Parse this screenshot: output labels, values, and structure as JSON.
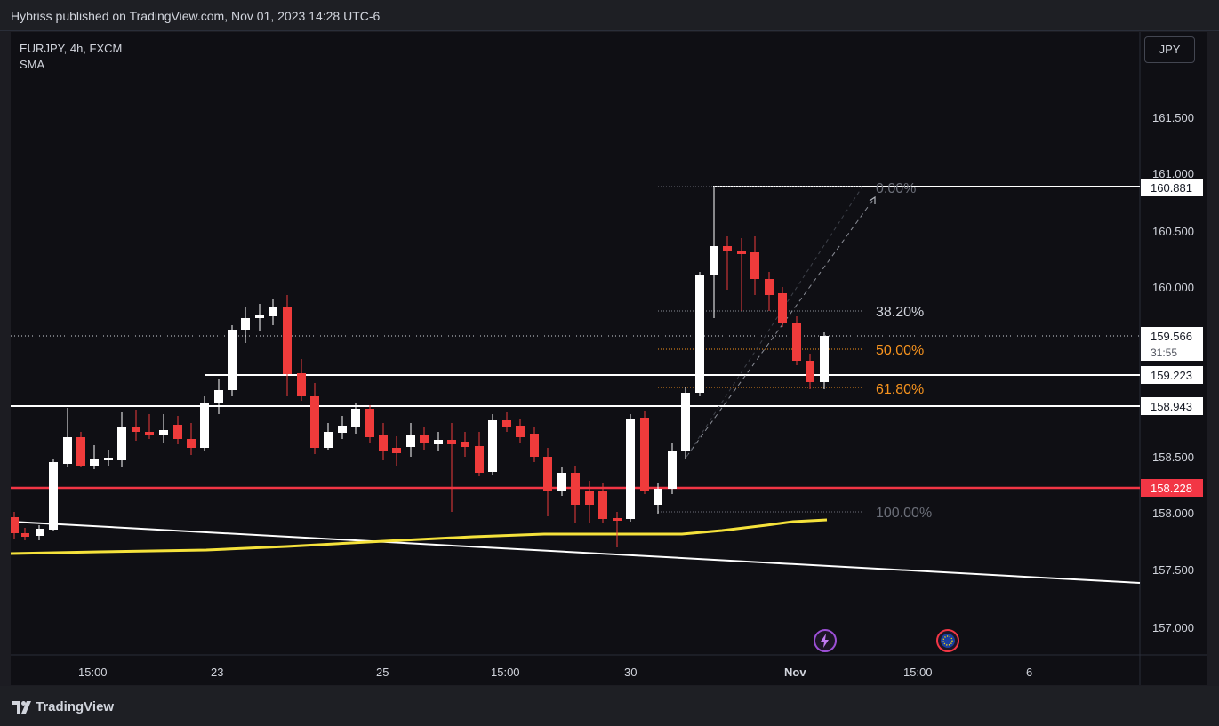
{
  "header": {
    "publish_info": "Hybriss published on TradingView.com, Nov 01, 2023 14:28 UTC-6"
  },
  "legend": {
    "symbol_line": "EURJPY, 4h, FXCM",
    "indicator": "SMA"
  },
  "currency_button": "JPY",
  "price_axis": {
    "ticks": [
      "161.500",
      "161.000",
      "160.500",
      "160.000",
      "158.500",
      "158.000",
      "157.500",
      "157.000"
    ],
    "labels": {
      "high": "160.881",
      "current_price": "159.566",
      "countdown": "31:55",
      "level_1": "159.223",
      "level_2": "158.943",
      "red_level": "158.228"
    }
  },
  "time_axis": [
    "15:00",
    "23",
    "25",
    "15:00",
    "30",
    "Nov",
    "15:00",
    "6"
  ],
  "fibonacci": {
    "levels": [
      "0.00%",
      "38.20%",
      "50.00%",
      "61.80%",
      "100.00%"
    ]
  },
  "colors": {
    "bullish": "#ffffff",
    "bearish": "#ef3b3b",
    "sma": "#f5e23b",
    "red_level": "#f23645",
    "fib_orange": "#f7931e",
    "fib_gray": "#6b6e78",
    "fib_white": "#d1d4dc",
    "background": "#0f0f14"
  },
  "icons": {
    "lightning_badge": "lightning-icon",
    "eu_flag_badge": "eu-flag-icon",
    "logo": "tradingview-logo-icon"
  },
  "footer": {
    "brand": "TradingView"
  }
}
